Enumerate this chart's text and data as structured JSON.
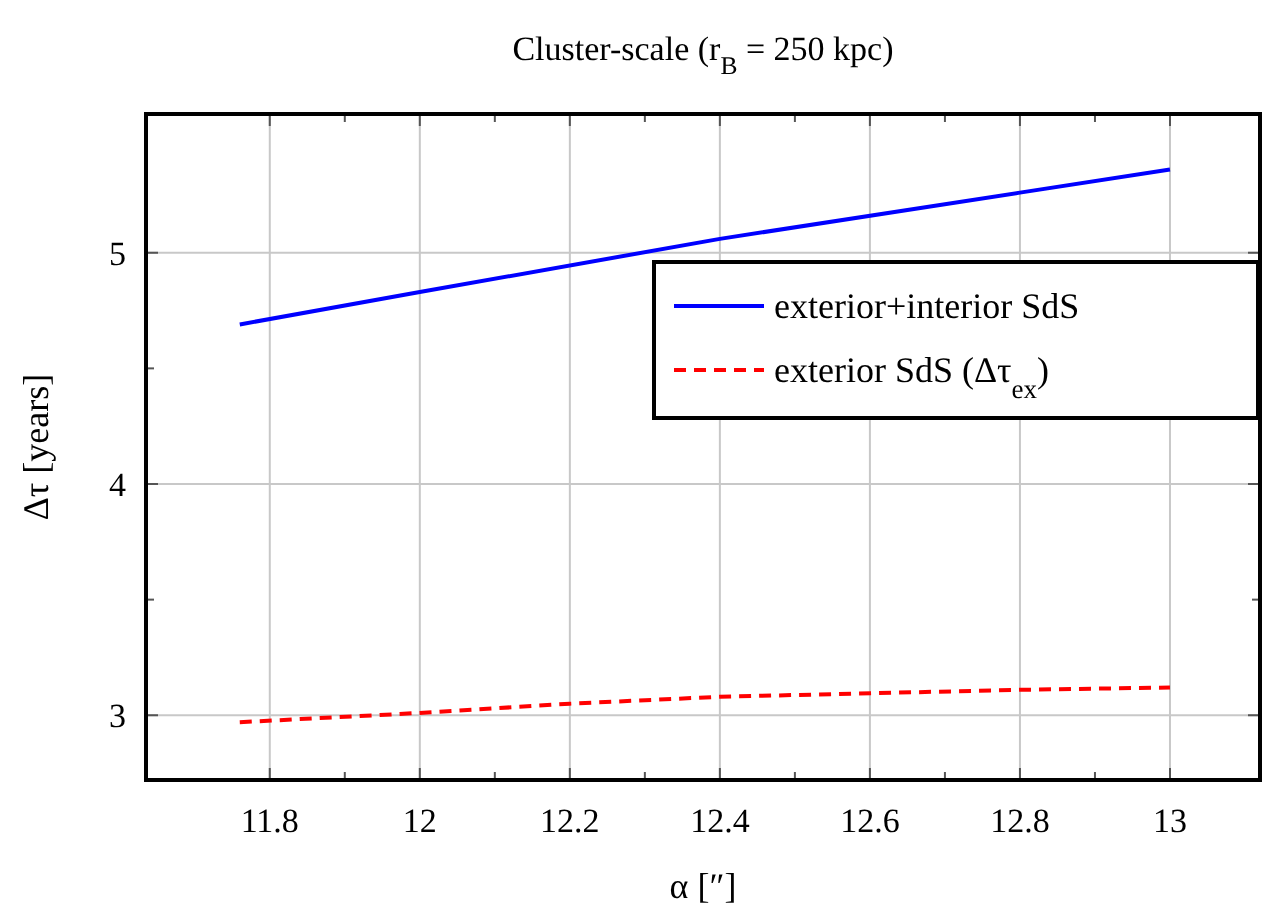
{
  "chart_data": {
    "type": "line",
    "title": "Cluster-scale (r$_{B}$ = 250 kpc)",
    "xlabel": "α [″]",
    "ylabel": "Δτ [years]",
    "xlim": [
      11.635,
      13.12
    ],
    "xticks": [
      11.8,
      {
        "value": 11.9,
        "label": null
      },
      12,
      {
        "value": 12.1,
        "label": null
      },
      12.2,
      {
        "value": 12.3,
        "label": null
      },
      12.4,
      {
        "value": 12.5,
        "label": null
      },
      12.6,
      {
        "value": 12.7,
        "label": null
      },
      12.8,
      {
        "value": 12.9,
        "label": null
      },
      13
    ],
    "ylim": [
      2.72,
      5.6
    ],
    "yticks": [
      3,
      {
        "value": 3.5,
        "label": null
      },
      4,
      {
        "value": 4.5,
        "label": null
      },
      5
    ],
    "grid": true,
    "legend": "top right",
    "series": [
      {
        "name": "exterior+interior SdS",
        "color": "#0000ff",
        "line_style": "solid",
        "x": [
          11.76,
          12,
          12.4,
          12.8,
          13
        ],
        "values": [
          4.69,
          4.83,
          5.06,
          5.26,
          5.36
        ]
      },
      {
        "name": "exterior SdS (Δτ$_{ex}$)",
        "color": "#ff0000",
        "line_style": "dashed",
        "x": [
          11.76,
          12,
          12.2,
          12.4,
          12.8,
          13
        ],
        "values": [
          2.97,
          3.01,
          3.05,
          3.08,
          3.11,
          3.12
        ]
      }
    ]
  }
}
